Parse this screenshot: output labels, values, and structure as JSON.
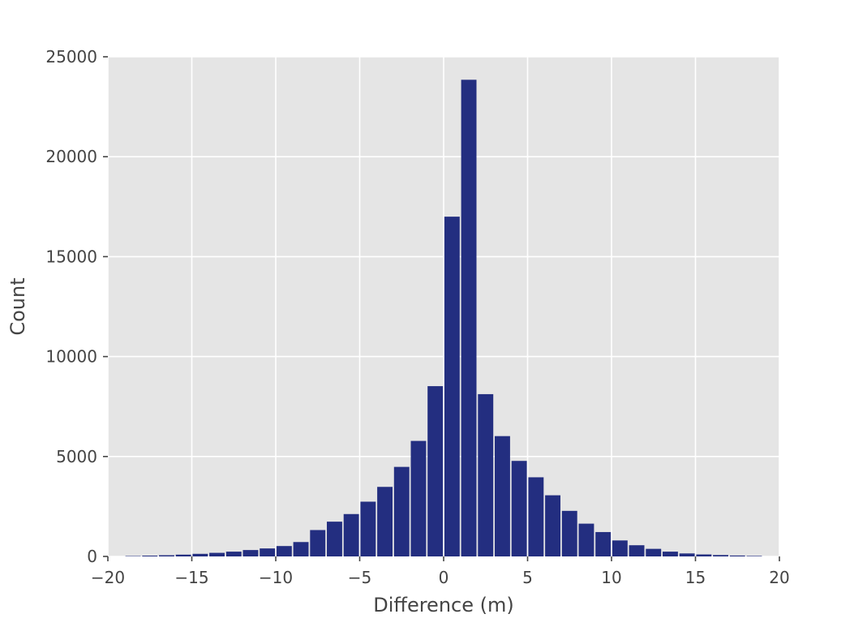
{
  "chart_data": {
    "type": "bar",
    "title": "",
    "xlabel": "Difference (m)",
    "ylabel": "Count",
    "xlim": [
      -20,
      20
    ],
    "ylim": [
      0,
      25000
    ],
    "grid": true,
    "bin_width": 1,
    "x_ticks": [
      -20,
      -15,
      -10,
      -5,
      0,
      5,
      10,
      15,
      20
    ],
    "x_tick_labels": [
      "−20",
      "−15",
      "−10",
      "−5",
      "0",
      "5",
      "10",
      "15",
      "20"
    ],
    "y_ticks": [
      0,
      5000,
      10000,
      15000,
      20000,
      25000
    ],
    "y_tick_labels": [
      "0",
      "5000",
      "10000",
      "15000",
      "20000",
      "25000"
    ],
    "bins": [
      -19,
      -18,
      -17,
      -16,
      -15,
      -14,
      -13,
      -12,
      -11,
      -10,
      -9,
      -8,
      -7,
      -6,
      -5,
      -4,
      -3,
      -2,
      -1,
      0,
      1,
      2,
      3,
      4,
      5,
      6,
      7,
      8,
      9,
      10,
      11,
      12,
      13,
      14,
      15,
      16,
      17,
      18
    ],
    "values": [
      20,
      40,
      60,
      90,
      130,
      180,
      240,
      320,
      400,
      520,
      720,
      1320,
      1740,
      2120,
      2740,
      3480,
      4480,
      5780,
      8520,
      17000,
      23850,
      8120,
      6020,
      4780,
      3960,
      3060,
      2280,
      1640,
      1220,
      800,
      560,
      380,
      240,
      150,
      100,
      70,
      45,
      25
    ],
    "colors": {
      "bar": "#232e80",
      "plot_background": "#e5e5e5",
      "grid": "#ffffff",
      "text": "#444444"
    }
  }
}
